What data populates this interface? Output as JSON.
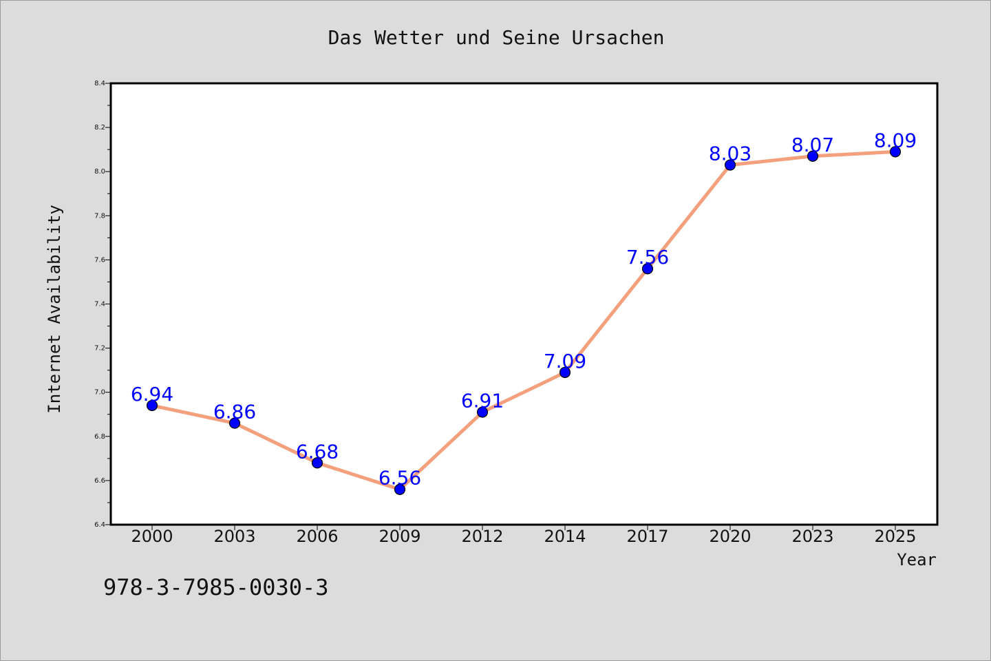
{
  "chart_data": {
    "type": "line",
    "title": "Das Wetter und Seine Ursachen",
    "xlabel": "Year",
    "ylabel": "Internet Availability",
    "categories": [
      "2000",
      "2003",
      "2006",
      "2009",
      "2012",
      "2014",
      "2017",
      "2020",
      "2023",
      "2025"
    ],
    "series": [
      {
        "values": [
          6.94,
          6.86,
          6.68,
          6.56,
          6.91,
          7.09,
          7.56,
          8.03,
          8.07,
          8.09
        ],
        "data_labels": [
          "6.94",
          "6.86",
          "6.68",
          "6.56",
          "6.91",
          "7.09",
          "7.56",
          "8.03",
          "8.07",
          "8.09"
        ]
      }
    ],
    "ylim": [
      6.4,
      8.4
    ],
    "yticks": [
      "6.4",
      "6.6",
      "6.8",
      "7.0",
      "7.2",
      "7.4",
      "7.6",
      "7.8",
      "8.0",
      "8.2",
      "8.4"
    ],
    "grid": false,
    "colors": {
      "line": "#f4a07d",
      "marker": "#0000ff",
      "label": "#0000ff",
      "background": "#dcdcdc",
      "plot_background": "#ffffff"
    }
  },
  "footer": {
    "isbn": "978-3-7985-0030-3"
  }
}
